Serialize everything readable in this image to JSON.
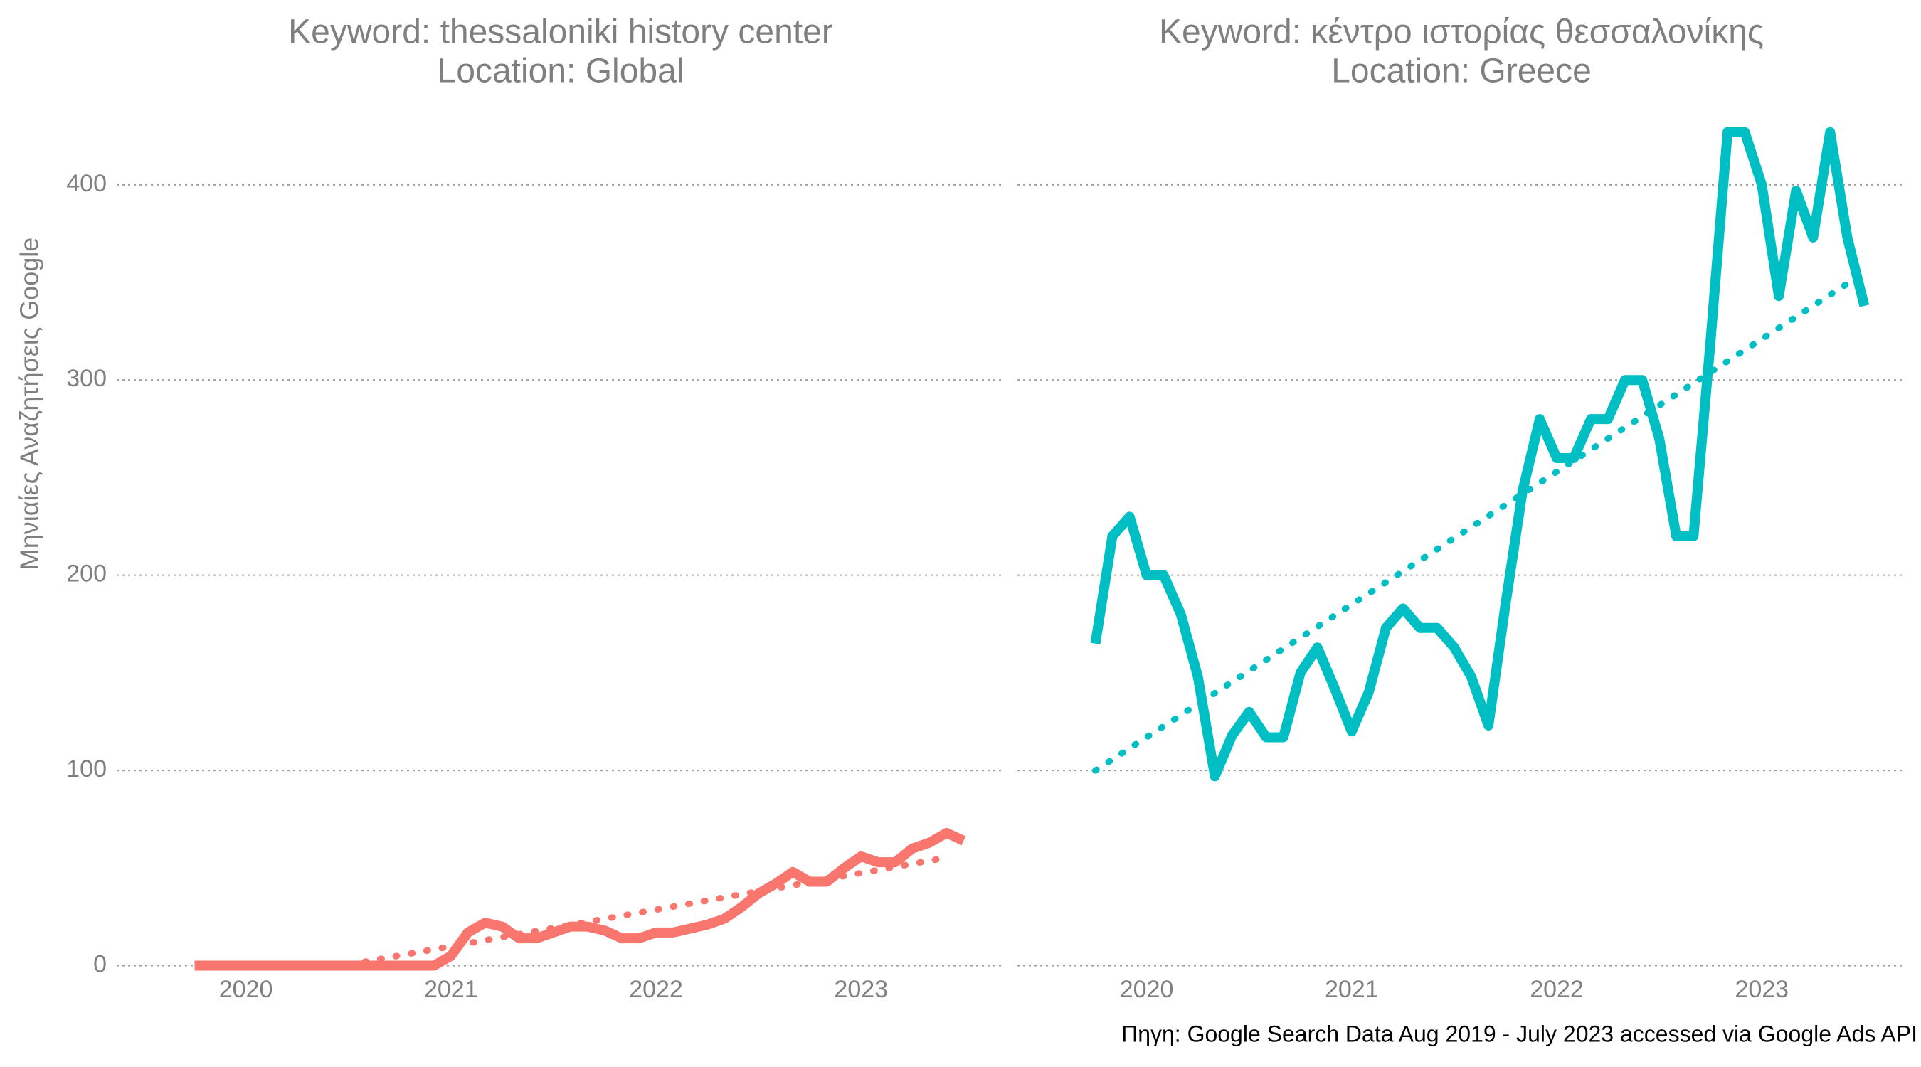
{
  "chart_data": [
    {
      "type": "line",
      "title": "Keyword: thessaloniki history center",
      "subtitle": "Location: Global",
      "ylabel": "Μηνιαίες Αναζητήσεις Google",
      "color": "#F8766D",
      "ytick_labels": true,
      "x": [
        2019.75,
        2019.833,
        2019.917,
        2020,
        2020.083,
        2020.167,
        2020.25,
        2020.333,
        2020.417,
        2020.5,
        2020.583,
        2020.667,
        2020.75,
        2020.833,
        2020.917,
        2021,
        2021.083,
        2021.167,
        2021.25,
        2021.333,
        2021.417,
        2021.5,
        2021.583,
        2021.667,
        2021.75,
        2021.833,
        2021.917,
        2022,
        2022.083,
        2022.167,
        2022.25,
        2022.333,
        2022.417,
        2022.5,
        2022.583,
        2022.667,
        2022.75,
        2022.833,
        2022.917,
        2023,
        2023.083,
        2023.167,
        2023.25,
        2023.333,
        2023.417,
        2023.5
      ],
      "values": [
        0,
        0,
        0,
        0,
        0,
        0,
        0,
        0,
        0,
        0,
        0,
        0,
        0,
        0,
        0,
        5,
        17,
        22,
        20,
        14,
        14,
        17,
        20,
        20,
        18,
        14,
        14,
        17,
        17,
        19,
        21,
        24,
        30,
        37,
        42,
        48,
        43,
        43,
        50,
        56,
        53,
        53,
        60,
        63,
        68,
        64
      ],
      "trend": {
        "x": [
          2020.58,
          2023.4
        ],
        "values": [
          2,
          55
        ]
      },
      "xlim": [
        2019.37,
        2023.7
      ],
      "xticks": [
        2020,
        2021,
        2022,
        2023
      ],
      "ylim": [
        -10,
        440
      ],
      "yticks": [
        0,
        100,
        200,
        300,
        400
      ],
      "grid": true
    },
    {
      "type": "line",
      "title": "Keyword: κέντρο ιστορίας θεσσαλονίκης",
      "subtitle": "Location: Greece",
      "color": "#00BFC4",
      "ytick_labels": false,
      "x": [
        2019.75,
        2019.833,
        2019.917,
        2020,
        2020.083,
        2020.167,
        2020.25,
        2020.333,
        2020.417,
        2020.5,
        2020.583,
        2020.667,
        2020.75,
        2020.833,
        2020.917,
        2021,
        2021.083,
        2021.167,
        2021.25,
        2021.333,
        2021.417,
        2021.5,
        2021.583,
        2021.667,
        2021.75,
        2021.833,
        2021.917,
        2022,
        2022.083,
        2022.167,
        2022.25,
        2022.333,
        2022.417,
        2022.5,
        2022.583,
        2022.667,
        2022.75,
        2022.833,
        2022.917,
        2023,
        2023.083,
        2023.167,
        2023.25,
        2023.333,
        2023.417,
        2023.5
      ],
      "values": [
        165,
        220,
        230,
        200,
        200,
        180,
        148,
        97,
        118,
        130,
        117,
        117,
        150,
        163,
        142,
        120,
        140,
        173,
        183,
        173,
        173,
        163,
        148,
        123,
        185,
        243,
        280,
        260,
        260,
        280,
        280,
        300,
        300,
        270,
        220,
        220,
        320,
        427,
        427,
        400,
        343,
        397,
        373,
        427,
        373,
        338
      ],
      "trend": {
        "x": [
          2019.75,
          2023.5
        ],
        "values": [
          100,
          355
        ]
      },
      "xlim": [
        2019.37,
        2023.7
      ],
      "xticks": [
        2020,
        2021,
        2022,
        2023
      ],
      "ylim": [
        -10,
        440
      ],
      "yticks": [
        0,
        100,
        200,
        300,
        400
      ],
      "grid": true
    }
  ],
  "caption": "Πηγη: Google Search Data Aug 2019 - July 2023 accessed via Google Ads API"
}
